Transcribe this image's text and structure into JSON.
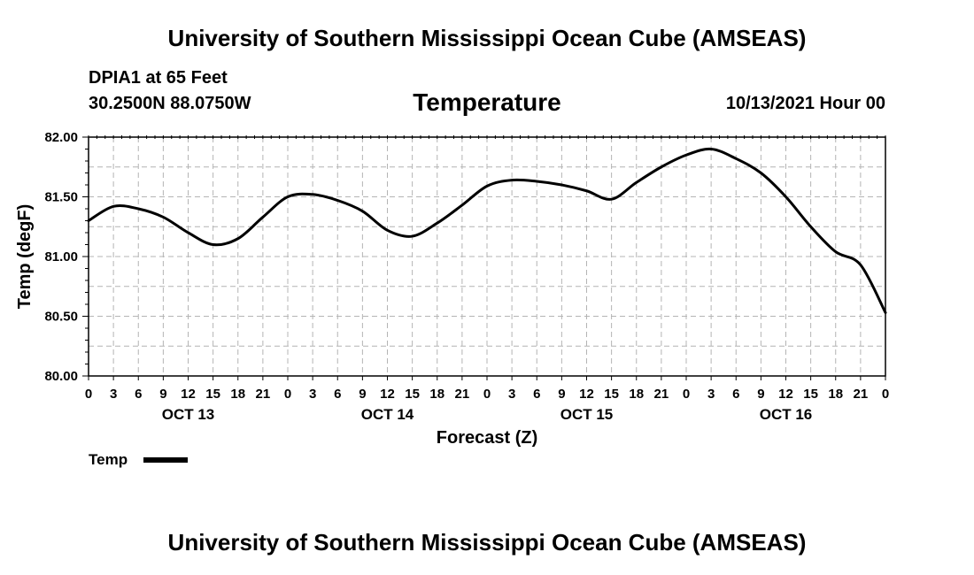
{
  "header": {
    "title": "University of Southern Mississippi Ocean Cube (AMSEAS)",
    "station": "DPIA1 at 65 Feet",
    "coords": "30.2500N  88.0750W",
    "parameter": "Temperature",
    "datetime": "10/13/2021 Hour 00"
  },
  "footer": {
    "title": "University of Southern Mississippi Ocean Cube (AMSEAS)"
  },
  "legend": {
    "label": "Temp",
    "color": "#000000"
  },
  "chart_data": {
    "type": "line",
    "title": "Temperature",
    "xlabel": "Forecast (Z)",
    "ylabel": "Temp (degF)",
    "ylim": [
      80.0,
      82.0
    ],
    "xlim": [
      0,
      96
    ],
    "x_unit": "hours from 10/13/2021 00Z",
    "y_ticks": [
      "80.00",
      "80.50",
      "81.00",
      "81.50",
      "82.00"
    ],
    "x_tick_labels": [
      "0",
      "3",
      "6",
      "9",
      "12",
      "15",
      "18",
      "21",
      "0",
      "3",
      "6",
      "9",
      "12",
      "15",
      "18",
      "21",
      "0",
      "3",
      "6",
      "9",
      "12",
      "15",
      "18",
      "21",
      "0",
      "3",
      "6",
      "9",
      "12",
      "15",
      "18",
      "21",
      "0"
    ],
    "day_labels": [
      {
        "label": "OCT 13",
        "hour": 12
      },
      {
        "label": "OCT 14",
        "hour": 36
      },
      {
        "label": "OCT 15",
        "hour": 60
      },
      {
        "label": "OCT 16",
        "hour": 84
      }
    ],
    "grid": true,
    "series": [
      {
        "name": "Temp",
        "color": "#000000",
        "x": [
          0,
          3,
          6,
          9,
          12,
          15,
          18,
          21,
          24,
          27,
          30,
          33,
          36,
          39,
          42,
          45,
          48,
          51,
          54,
          57,
          60,
          63,
          66,
          69,
          72,
          75,
          78,
          81,
          84,
          87,
          90,
          93,
          96
        ],
        "values": [
          81.3,
          81.42,
          81.4,
          81.33,
          81.2,
          81.1,
          81.15,
          81.33,
          81.5,
          81.52,
          81.47,
          81.38,
          81.22,
          81.17,
          81.28,
          81.43,
          81.59,
          81.64,
          81.63,
          81.6,
          81.55,
          81.48,
          81.62,
          81.75,
          81.85,
          81.9,
          81.82,
          81.7,
          81.5,
          81.25,
          81.04,
          80.93,
          80.53
        ]
      }
    ]
  }
}
